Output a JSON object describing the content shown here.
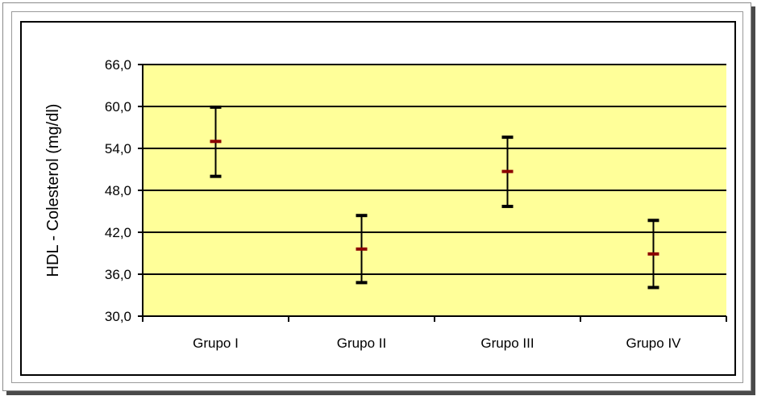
{
  "chart_data": {
    "type": "errorbar",
    "xlabel": "",
    "ylabel": "HDL - Colesterol (mg/dl)",
    "ylim": [
      30.0,
      66.0
    ],
    "yticks": [
      "30,0",
      "36,0",
      "42,0",
      "48,0",
      "54,0",
      "60,0",
      "66,0"
    ],
    "yticks_values": [
      30,
      36,
      42,
      48,
      54,
      60,
      66
    ],
    "categories": [
      "Grupo I",
      "Grupo II",
      "Grupo III",
      "Grupo IV"
    ],
    "series": [
      {
        "mean": [
          55.0,
          39.6,
          50.7,
          38.9
        ],
        "upper": [
          59.9,
          44.4,
          55.6,
          43.7
        ],
        "lower": [
          50.0,
          34.8,
          45.7,
          34.1
        ]
      }
    ],
    "grid": true,
    "plot_background": "#FFFF99",
    "mean_color": "#8B0000",
    "bar_color": "#000000"
  }
}
